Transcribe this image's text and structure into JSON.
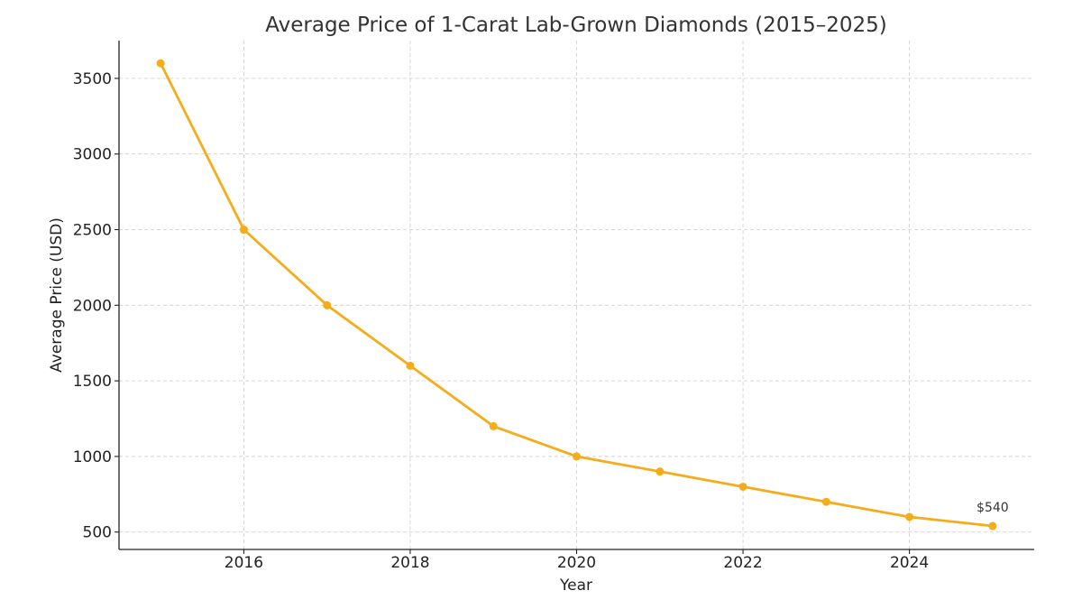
{
  "chart_data": {
    "type": "line",
    "title": "Average Price of 1-Carat Lab-Grown Diamonds (2015–2025)",
    "xlabel": "Year",
    "ylabel": "Average Price (USD)",
    "x": [
      2015,
      2016,
      2017,
      2018,
      2019,
      2020,
      2021,
      2022,
      2023,
      2024,
      2025
    ],
    "series": [
      {
        "values": [
          3600,
          2500,
          2000,
          1600,
          1200,
          1000,
          900,
          800,
          700,
          600,
          540
        ],
        "color": "#f5ac1b"
      }
    ],
    "xticks": [
      2016,
      2018,
      2020,
      2022,
      2024
    ],
    "yticks": [
      500,
      1000,
      1500,
      2000,
      2500,
      3000,
      3500
    ],
    "xlim": [
      2014.5,
      2025.5
    ],
    "ylim": [
      385,
      3750
    ],
    "grid": true,
    "annotations": [
      {
        "x": 2025,
        "y": 540,
        "text": "$540"
      }
    ]
  }
}
